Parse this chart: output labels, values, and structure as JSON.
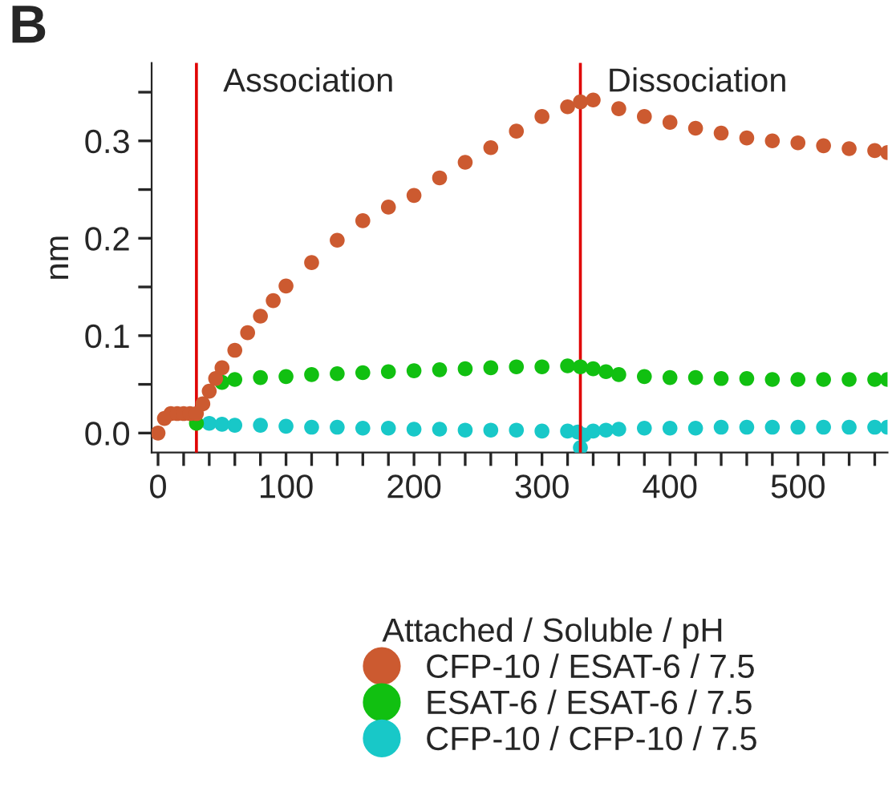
{
  "chart_data": {
    "type": "scatter",
    "title": "B",
    "ylabel": "nm",
    "legend_title": "Attached / Soluble / pH",
    "legend": "bottom",
    "marker": "circle",
    "grid": false,
    "xlim": [
      -5,
      570
    ],
    "ylim": [
      -0.02,
      0.38
    ],
    "xticks": [
      0,
      {
        "value": 20,
        "label": null
      },
      {
        "value": 40,
        "label": null
      },
      {
        "value": 60,
        "label": null
      },
      {
        "value": 80,
        "label": null
      },
      100,
      {
        "value": 120,
        "label": null
      },
      {
        "value": 140,
        "label": null
      },
      {
        "value": 160,
        "label": null
      },
      {
        "value": 180,
        "label": null
      },
      200,
      {
        "value": 220,
        "label": null
      },
      {
        "value": 240,
        "label": null
      },
      {
        "value": 260,
        "label": null
      },
      {
        "value": 280,
        "label": null
      },
      300,
      {
        "value": 320,
        "label": null
      },
      {
        "value": 340,
        "label": null
      },
      {
        "value": 360,
        "label": null
      },
      {
        "value": 380,
        "label": null
      },
      400,
      {
        "value": 420,
        "label": null
      },
      {
        "value": 440,
        "label": null
      },
      {
        "value": 460,
        "label": null
      },
      {
        "value": 480,
        "label": null
      },
      500,
      {
        "value": 520,
        "label": null
      },
      {
        "value": 540,
        "label": null
      },
      {
        "value": 560,
        "label": null
      }
    ],
    "yticks": [
      {
        "value": 0,
        "label": "0.0"
      },
      {
        "value": 0.05,
        "label": null
      },
      0.1,
      {
        "value": 0.15,
        "label": null
      },
      0.2,
      {
        "value": 0.25,
        "label": null
      },
      0.3,
      {
        "value": 0.35,
        "label": null
      }
    ],
    "ref_lines": [
      {
        "axis": "x",
        "value": 30,
        "label": "Association",
        "color": "#e00000"
      },
      {
        "axis": "x",
        "value": 330,
        "label": "Dissociation",
        "color": "#e00000"
      }
    ],
    "series": [
      {
        "name": "CFP-10 / ESAT-6 / 7.5",
        "color": "#cc5a30",
        "x": [
          0,
          5,
          10,
          15,
          20,
          25,
          30,
          35,
          40,
          45,
          50,
          60,
          70,
          80,
          90,
          100,
          120,
          140,
          160,
          180,
          200,
          220,
          240,
          260,
          280,
          300,
          320,
          330,
          340,
          360,
          380,
          400,
          420,
          440,
          460,
          480,
          500,
          520,
          540,
          560,
          570
        ],
        "values": [
          0.0,
          0.015,
          0.02,
          0.02,
          0.02,
          0.02,
          0.02,
          0.03,
          0.043,
          0.056,
          0.067,
          0.085,
          0.103,
          0.12,
          0.136,
          0.151,
          0.175,
          0.198,
          0.218,
          0.232,
          0.244,
          0.262,
          0.278,
          0.293,
          0.31,
          0.325,
          0.335,
          0.34,
          0.342,
          0.333,
          0.325,
          0.319,
          0.313,
          0.308,
          0.303,
          0.3,
          0.298,
          0.295,
          0.292,
          0.29,
          0.288
        ]
      },
      {
        "name": "ESAT-6 / ESAT-6 / 7.5",
        "color": "#11c011",
        "x": [
          30,
          50,
          60,
          80,
          100,
          120,
          140,
          160,
          180,
          200,
          220,
          240,
          260,
          280,
          300,
          320,
          330,
          340,
          350,
          360,
          380,
          400,
          420,
          440,
          460,
          480,
          500,
          520,
          540,
          560,
          570
        ],
        "values": [
          0.01,
          0.052,
          0.055,
          0.057,
          0.058,
          0.06,
          0.061,
          0.062,
          0.063,
          0.064,
          0.065,
          0.066,
          0.067,
          0.068,
          0.068,
          0.069,
          0.068,
          0.066,
          0.063,
          0.06,
          0.058,
          0.057,
          0.057,
          0.056,
          0.056,
          0.055,
          0.055,
          0.055,
          0.055,
          0.055,
          0.055
        ]
      },
      {
        "name": "CFP-10 / CFP-10 / 7.5",
        "color": "#18c8c8",
        "x": [
          40,
          50,
          60,
          80,
          100,
          120,
          140,
          160,
          180,
          200,
          220,
          240,
          260,
          280,
          300,
          320,
          328,
          330,
          333,
          340,
          350,
          360,
          380,
          400,
          420,
          440,
          460,
          480,
          500,
          520,
          540,
          560,
          570
        ],
        "values": [
          0.01,
          0.009,
          0.008,
          0.008,
          0.007,
          0.006,
          0.006,
          0.005,
          0.005,
          0.004,
          0.004,
          0.003,
          0.003,
          0.003,
          0.002,
          0.002,
          0.001,
          -0.015,
          -0.002,
          0.002,
          0.003,
          0.004,
          0.005,
          0.005,
          0.005,
          0.006,
          0.006,
          0.006,
          0.006,
          0.006,
          0.006,
          0.006,
          0.006
        ]
      }
    ]
  }
}
